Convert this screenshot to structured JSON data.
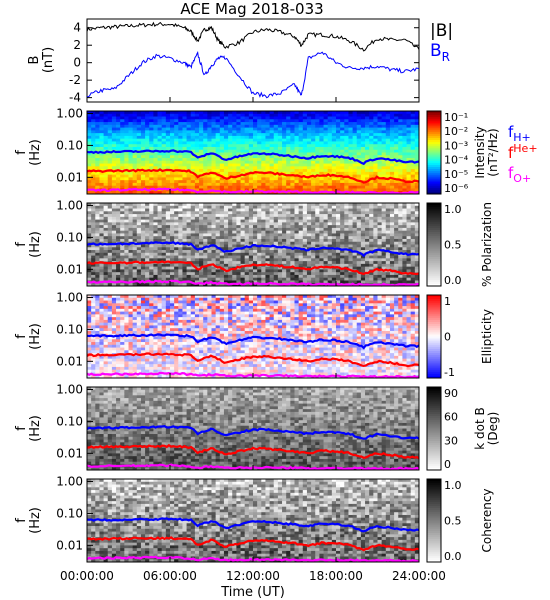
{
  "figure": {
    "title": "ACE Mag 2018-033",
    "time_axis": {
      "label": "Time (UT)",
      "ticks": [
        "00:00:00",
        "06:00:00",
        "12:00:00",
        "18:00:00",
        "24:00:00"
      ],
      "range_hours": [
        0,
        24
      ]
    }
  },
  "legend": {
    "b_total": "|B|",
    "b_r": "B",
    "b_r_sub": "R",
    "f_h": "f",
    "f_h_sub": "H+",
    "f_he": "f",
    "f_he_sub": "He+",
    "f_o": "f",
    "f_o_sub": "O+"
  },
  "colors": {
    "b_total": "#000000",
    "b_r": "#0000ff",
    "f_h": "#0000ff",
    "f_he": "#ff0000",
    "f_o": "#ff00ff"
  },
  "chart_data": [
    {
      "type": "line",
      "panel": "field",
      "ylabel": "B",
      "yunit": "(nT)",
      "ylim": [
        -4.5,
        5
      ],
      "yticks": [
        "4",
        "2",
        "0",
        "-2",
        "-4"
      ],
      "x_hours": [
        0,
        1,
        2,
        3,
        4,
        5,
        6,
        7,
        7.5,
        8,
        8.5,
        9,
        9.5,
        10,
        11,
        12,
        13,
        14,
        15,
        15.5,
        16,
        17,
        18,
        19,
        20,
        21,
        22,
        23,
        24
      ],
      "series": [
        {
          "name": "|B|",
          "values": [
            3.8,
            4.0,
            4.1,
            4.2,
            4.3,
            4.4,
            4.4,
            4.0,
            3.6,
            2.5,
            3.8,
            4.0,
            2.5,
            1.8,
            2.3,
            3.5,
            3.8,
            3.5,
            3.0,
            2.0,
            3.2,
            3.2,
            3.0,
            2.5,
            1.5,
            2.8,
            2.6,
            2.6,
            1.5
          ]
        },
        {
          "name": "B_R",
          "values": [
            -3.8,
            -3.2,
            -3.0,
            -1.5,
            0.0,
            0.8,
            0.5,
            0.0,
            -0.5,
            1.0,
            -1.5,
            -0.3,
            0.5,
            0.6,
            -1.5,
            -3.5,
            -3.8,
            -3.5,
            -2.5,
            -3.8,
            0.5,
            1.2,
            0.0,
            -0.6,
            -0.6,
            -0.4,
            -0.8,
            -1.0,
            -0.7
          ]
        }
      ]
    },
    {
      "type": "heatmap",
      "panel": "power",
      "ylabel": "f",
      "yunit": "(Hz)",
      "ylim_hz": [
        0.003,
        1.0
      ],
      "yticks": [
        "1.00",
        "0.10",
        "0.01"
      ],
      "colorbar": {
        "label": "Intensity",
        "unit": "(nT²/Hz)",
        "ticks": [
          "10⁻¹",
          "10⁻²",
          "10⁻³",
          "10⁻⁴",
          "10⁻⁵",
          "10⁻⁶"
        ]
      }
    },
    {
      "type": "heatmap",
      "panel": "polarization",
      "ylabel": "f",
      "yunit": "(Hz)",
      "yticks": [
        "1.00",
        "0.10",
        "0.01"
      ],
      "colorbar": {
        "label": "% Polarization",
        "ticks": [
          "1.0",
          "0.5",
          "0.0"
        ]
      }
    },
    {
      "type": "heatmap",
      "panel": "ellipticity",
      "ylabel": "f",
      "yunit": "(Hz)",
      "yticks": [
        "1.00",
        "0.10",
        "0.01"
      ],
      "colorbar": {
        "label": "Ellipticity",
        "ticks": [
          "1",
          "0",
          "-1"
        ]
      }
    },
    {
      "type": "heatmap",
      "panel": "kdotb",
      "ylabel": "f",
      "yunit": "(Hz)",
      "yticks": [
        "1.00",
        "0.10",
        "0.01"
      ],
      "colorbar": {
        "label": "k dot B",
        "unit": "(Deg)",
        "ticks": [
          "90",
          "60",
          "30",
          "0"
        ]
      }
    },
    {
      "type": "heatmap",
      "panel": "coherency",
      "ylabel": "f",
      "yunit": "(Hz)",
      "yticks": [
        "1.00",
        "0.10",
        "0.01"
      ],
      "colorbar": {
        "label": "Coherency",
        "ticks": [
          "1.0",
          "0.5",
          "0.0"
        ]
      }
    },
    {
      "type": "line",
      "panel": "gyrofrequencies",
      "x_hours": [
        0,
        2,
        4,
        6,
        7.5,
        8,
        9,
        10,
        11,
        12,
        13,
        14,
        15,
        16,
        17,
        18,
        19,
        20,
        21,
        22,
        23,
        24
      ],
      "series": [
        {
          "name": "H+",
          "values_hz": [
            0.061,
            0.063,
            0.065,
            0.068,
            0.062,
            0.04,
            0.058,
            0.035,
            0.045,
            0.055,
            0.055,
            0.05,
            0.045,
            0.04,
            0.048,
            0.045,
            0.04,
            0.028,
            0.04,
            0.035,
            0.03,
            0.03
          ]
        },
        {
          "name": "He+",
          "values_hz": [
            0.0155,
            0.016,
            0.0165,
            0.017,
            0.0155,
            0.01,
            0.0145,
            0.009,
            0.0115,
            0.014,
            0.014,
            0.0125,
            0.0115,
            0.01,
            0.012,
            0.0115,
            0.01,
            0.007,
            0.01,
            0.009,
            0.0075,
            0.0075
          ]
        },
        {
          "name": "O+",
          "values_hz": [
            0.0039,
            0.004,
            0.0041,
            0.0042,
            0.0039,
            0.0036,
            0.0038,
            0.0035,
            0.0035,
            0.0036,
            0.0036,
            0.0035,
            0.0035,
            0.0034,
            0.0034,
            0.0034,
            0.0034,
            0.0033,
            0.0033,
            0.0033,
            0.0033,
            0.0033
          ]
        }
      ]
    }
  ]
}
